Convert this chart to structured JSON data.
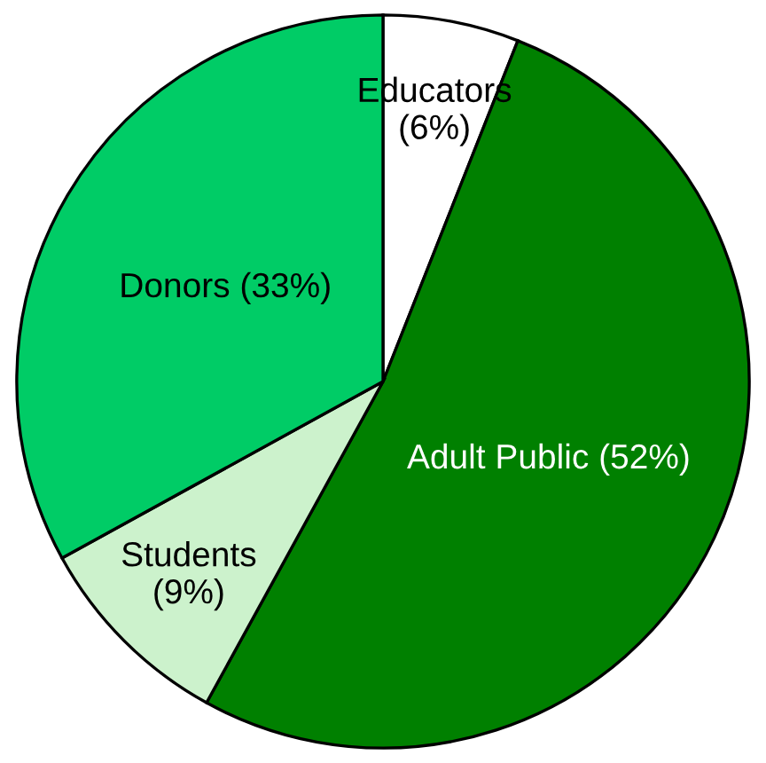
{
  "chart_data": {
    "type": "pie",
    "categories": [
      "Educators",
      "Adult Public",
      "Students",
      "Donors"
    ],
    "values": [
      6,
      52,
      9,
      33
    ],
    "value_labels": [
      "(6%)",
      "(52%)",
      "(9%)",
      "(33%)"
    ],
    "colors": [
      "#ffffff",
      "#008000",
      "#ccf2cc",
      "#00cc66"
    ]
  }
}
